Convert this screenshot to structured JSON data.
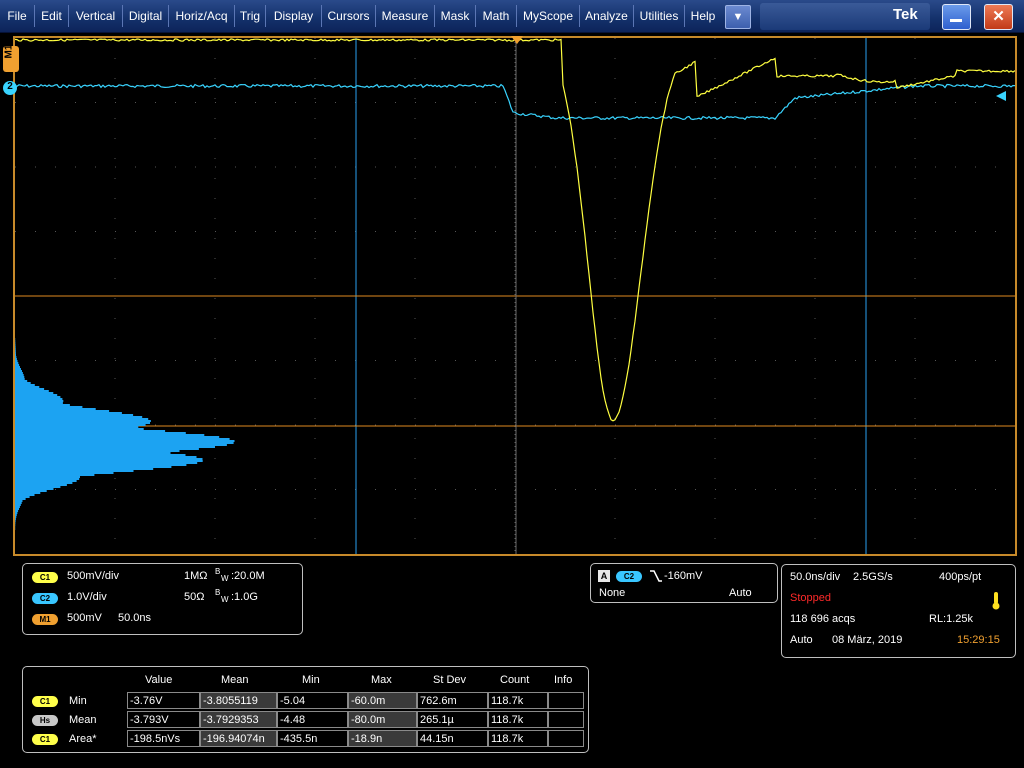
{
  "menu": {
    "items": [
      "File",
      "Edit",
      "Vertical",
      "Digital",
      "Horiz/Acq",
      "Trig",
      "Display",
      "Cursors",
      "Measure",
      "Mask",
      "Math",
      "MyScope",
      "Analyze",
      "Utilities",
      "Help"
    ],
    "dropdown_icon": "chevron-down-icon",
    "logo": "Tek",
    "minimize_icon": "minimize-icon",
    "close_icon": "close-icon"
  },
  "scope": {
    "ch1_marker": "1",
    "m1_marker": "M1",
    "ch2_marker": "2",
    "colors": {
      "ch1": "#ffff40",
      "ch2": "#39d4ff",
      "histogram": "#1ca3f2",
      "cursor_v": "#2aa0f0",
      "cursor_h": "#e08a20",
      "frame": "#c78a2a"
    }
  },
  "channels": {
    "c1_badge": "C1",
    "c1_scale": "500mV/div",
    "c1_coupling": "1MΩ",
    "c1_bw_label": "B",
    "c1_bw_sub": "W",
    "c1_bw_value": ":20.0M",
    "c2_badge": "C2",
    "c2_scale": "1.0V/div",
    "c2_coupling": "50Ω",
    "c2_bw_label": "B",
    "c2_bw_sub": "W",
    "c2_bw_value": ":1.0G",
    "m1_badge": "M1",
    "m1_scale": "500mV",
    "m1_time": "50.0ns"
  },
  "trigger": {
    "mode_badge": "A",
    "source_badge": "C2",
    "slope_icon": "falling-edge-icon",
    "level": "-160mV",
    "coupling": "None",
    "sweep": "Auto"
  },
  "acquisition": {
    "timebase": "50.0ns/div",
    "sample_rate": "2.5GS/s",
    "resolution": "400ps/pt",
    "status": "Stopped",
    "acqs": "118 696 acqs",
    "record_length": "RL:1.25k",
    "mode": "Auto",
    "date": "08 März, 2019",
    "time": "15:29:15",
    "status_color": "#ff2a2a",
    "time_color": "#f0a030",
    "indicator_icon": "thermometer-icon"
  },
  "measurements": {
    "headers": [
      "Value",
      "Mean",
      "Min",
      "Max",
      "St Dev",
      "Count",
      "Info"
    ],
    "rows": [
      {
        "badge": "C1",
        "name": "Min",
        "value": "-3.76V",
        "mean": "-3.8055119",
        "min": "-5.04",
        "max": "-60.0m",
        "stdev": "762.6m",
        "count": "118.7k",
        "info": ""
      },
      {
        "badge": "Hs",
        "name": "Mean",
        "value": "-3.793V",
        "mean": "-3.7929353",
        "min": "-4.48",
        "max": "-80.0m",
        "stdev": "265.1µ",
        "count": "118.7k",
        "info": ""
      },
      {
        "badge": "C1",
        "name": "Area*",
        "value": "-198.5nVs",
        "mean": "-196.94074n",
        "min": "-435.5n",
        "max": "-18.9n",
        "stdev": "44.15n",
        "count": "118.7k",
        "info": ""
      }
    ]
  }
}
